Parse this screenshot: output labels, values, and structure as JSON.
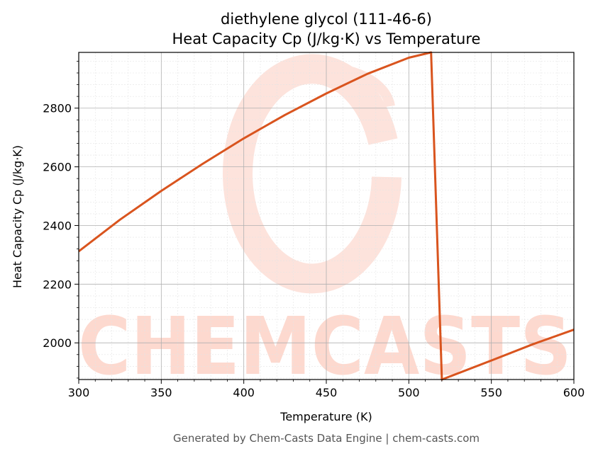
{
  "chart_data": {
    "type": "line",
    "title_line1": "diethylene glycol (111-46-6)",
    "title_line2": "Heat Capacity Cp (J/kg·K) vs Temperature",
    "xlabel": "Temperature (K)",
    "ylabel": "Heat Capacity Cp (J/kg·K)",
    "xlim": [
      300,
      600
    ],
    "ylim": [
      1875,
      2990
    ],
    "x_ticks": [
      300,
      350,
      400,
      450,
      500,
      550,
      600
    ],
    "y_ticks": [
      2000,
      2200,
      2400,
      2600,
      2800
    ],
    "grid": true,
    "line_color": "#d9541e",
    "series": [
      {
        "x": [
          300,
          325,
          350,
          375,
          400,
          425,
          450,
          475,
          500,
          513.5,
          520,
          550,
          575,
          600
        ],
        "y": [
          2312,
          2420,
          2518,
          2610,
          2697,
          2777,
          2850,
          2917,
          2972,
          2990,
          1875,
          1940,
          1995,
          2045
        ]
      }
    ]
  },
  "watermark": {
    "text": "CHEMCASTS",
    "color": "#fdd9cf"
  },
  "footer": "Generated by Chem-Casts Data Engine | chem-casts.com"
}
